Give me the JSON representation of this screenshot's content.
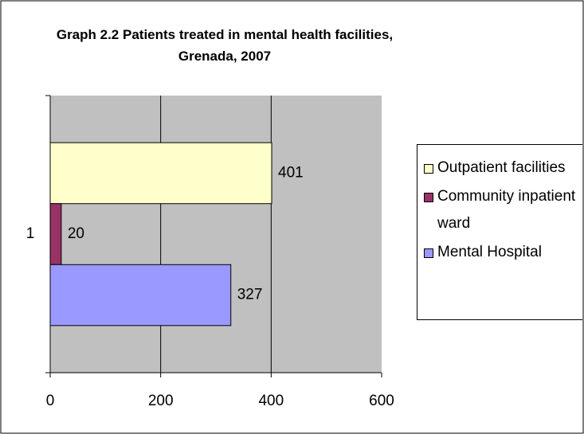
{
  "chart_data": {
    "type": "bar",
    "orientation": "horizontal",
    "title": "Graph 2.2 Patients treated in mental health facilities, Grenada, 2007",
    "categories": [
      "1"
    ],
    "series": [
      {
        "name": "Outpatient facilities",
        "color": "#ffffcc",
        "values": [
          401
        ]
      },
      {
        "name": "Community inpatient ward",
        "color": "#993366",
        "values": [
          20
        ]
      },
      {
        "name": "Mental Hospital",
        "color": "#9999ff",
        "values": [
          327
        ]
      }
    ],
    "xlim": [
      0,
      600
    ],
    "xticks": [
      0,
      200,
      400,
      600
    ],
    "grid": true,
    "legend": "right"
  }
}
